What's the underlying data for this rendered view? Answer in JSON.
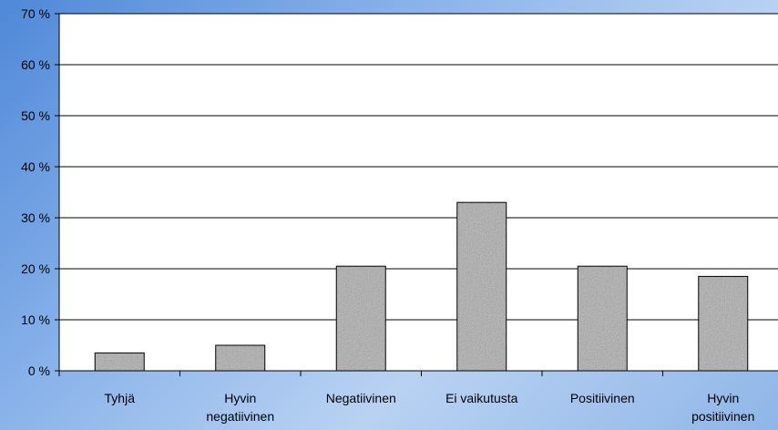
{
  "chart_data": {
    "type": "bar",
    "categories": [
      "Tyhjä",
      "Hyvin\nnegatiivinen",
      "Negatiivinen",
      "Ei vaikutusta",
      "Positiivinen",
      "Hyvin\npositiivinen"
    ],
    "values": [
      3.5,
      5.0,
      20.5,
      33.0,
      20.5,
      18.5
    ],
    "ylim": [
      0,
      70
    ],
    "yticks": [
      0,
      10,
      20,
      30,
      40,
      50,
      60,
      70
    ],
    "ytick_suffix": " %",
    "grid": true,
    "bar_fill": "#a9a9a9",
    "plot_background": "#ffffff"
  }
}
